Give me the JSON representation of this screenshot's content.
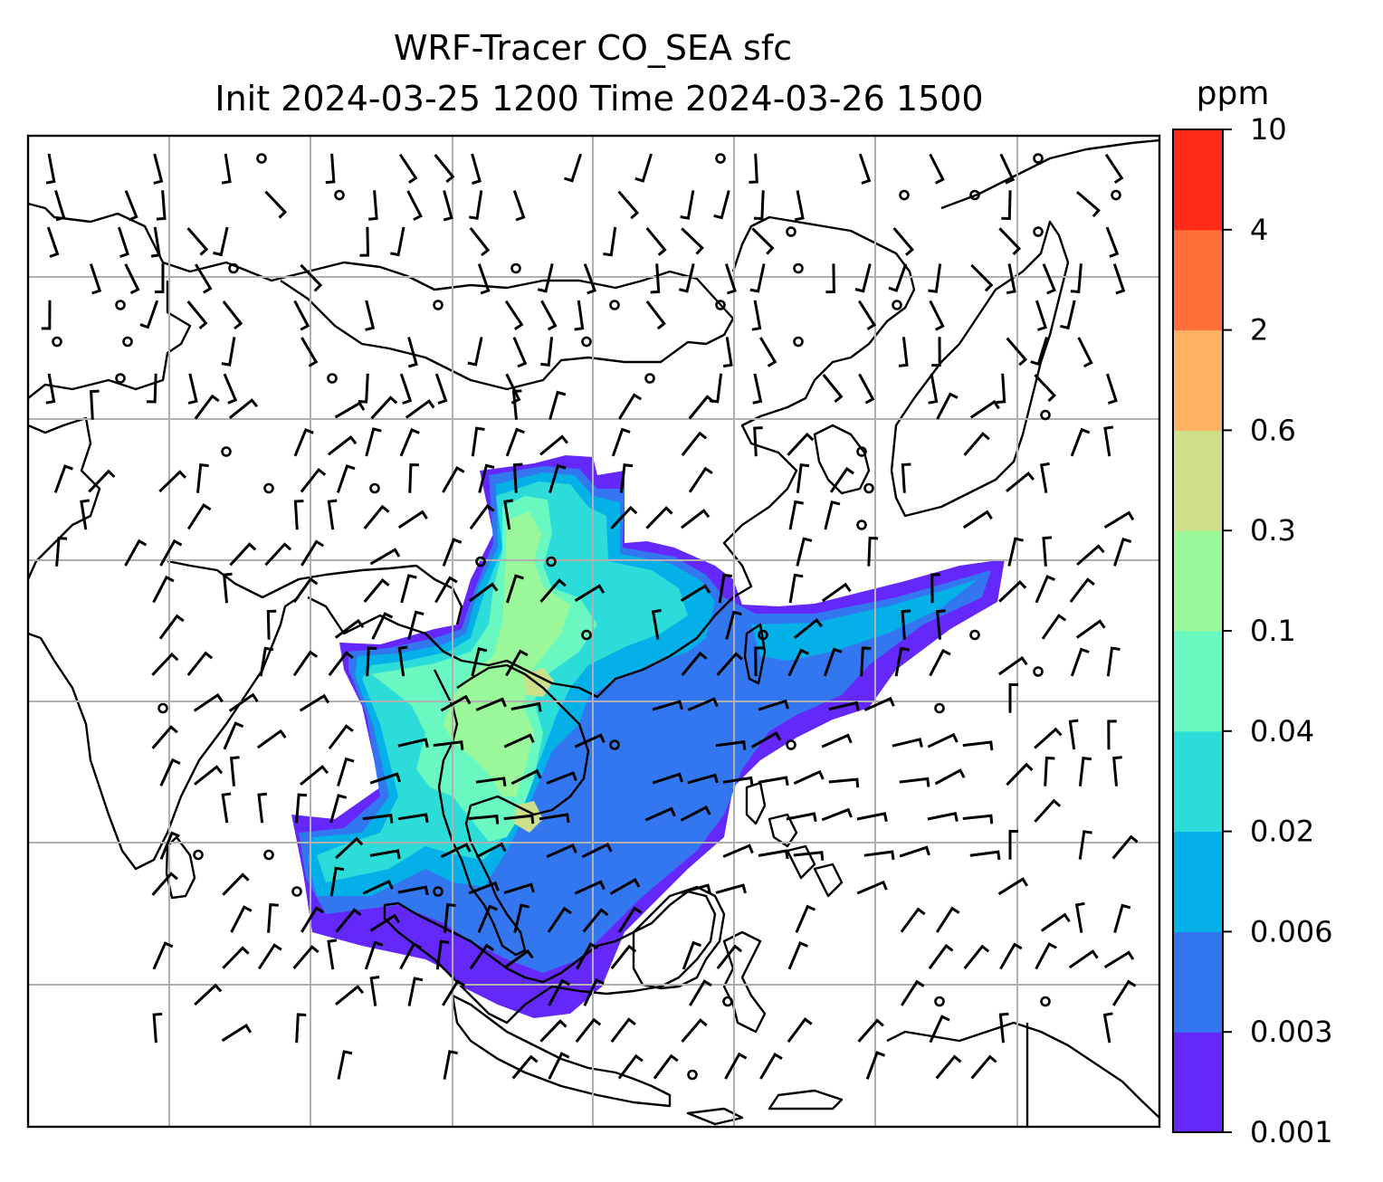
{
  "title": {
    "line1": "WRF-Tracer CO_SEA sfc",
    "line2": "Init 2024-03-25 1200 Time 2024-03-26 1500"
  },
  "colorbar": {
    "unit": "ppm",
    "ticks": [
      "0.001",
      "0.003",
      "0.006",
      "0.02",
      "0.04",
      "0.1",
      "0.3",
      "0.6",
      "2",
      "4",
      "10"
    ],
    "colors": [
      "#6528fa",
      "#3377f0",
      "#04b0e8",
      "#2cdcd8",
      "#68f8c0",
      "#9af89a",
      "#cbe088",
      "#ffb060",
      "#ff7038",
      "#ff2a18"
    ]
  },
  "map": {
    "gridlines": true,
    "coastline_color": "#000000",
    "gridline_color": "#b0b0b0"
  }
}
